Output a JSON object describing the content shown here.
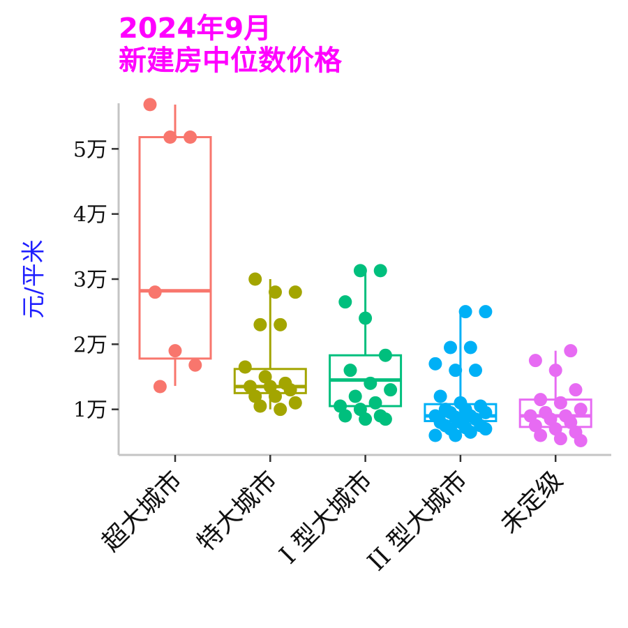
{
  "chart_data": {
    "type": "box",
    "title_lines": [
      "2024年9月",
      "新建房中位数价格"
    ],
    "ylabel": "元/平米",
    "xlabel": "",
    "ylim": [
      3000,
      57000
    ],
    "y_ticks": [
      {
        "value": 10000,
        "label": "1万"
      },
      {
        "value": 20000,
        "label": "2万"
      },
      {
        "value": 30000,
        "label": "3万"
      },
      {
        "value": 40000,
        "label": "4万"
      },
      {
        "value": 50000,
        "label": "5万"
      }
    ],
    "categories": [
      "超大城市",
      "特大城市",
      "I 型大城市",
      "II 型大城市",
      "未定级"
    ],
    "series": [
      {
        "category": "超大城市",
        "color": "#f8766d",
        "box": {
          "q1": 17800,
          "median": 28200,
          "q3": 51800,
          "lower": 13600,
          "upper": 56800
        },
        "points": [
          56800,
          51800,
          51800,
          28000,
          19000,
          16800,
          13500
        ]
      },
      {
        "category": "特大城市",
        "color": "#a3a500",
        "box": {
          "q1": 12500,
          "median": 13500,
          "q3": 16200,
          "lower": 10000,
          "upper": 30000
        },
        "points": [
          30000,
          28000,
          28000,
          23000,
          23000,
          16500,
          15000,
          14000,
          13500,
          13500,
          13000,
          12000,
          12000,
          11000,
          10500,
          10000
        ]
      },
      {
        "category": "I 型大城市",
        "color": "#00bf7d",
        "box": {
          "q1": 10500,
          "median": 14500,
          "q3": 18300,
          "lower": 8500,
          "upper": 31300
        },
        "points": [
          31300,
          31300,
          26500,
          24000,
          18300,
          16000,
          14000,
          13000,
          12000,
          11000,
          10500,
          10000,
          9000,
          9000,
          8500,
          8500
        ]
      },
      {
        "category": "II 型大城市",
        "color": "#00b0f6",
        "box": {
          "q1": 8200,
          "median": 9000,
          "q3": 10800,
          "lower": 6000,
          "upper": 25000
        },
        "points": [
          25000,
          25000,
          19500,
          19500,
          17000,
          16000,
          16000,
          12000,
          11000,
          10500,
          10000,
          10000,
          9500,
          9500,
          9000,
          9000,
          8800,
          8500,
          8000,
          8000,
          7500,
          7500,
          7200,
          7000,
          7000,
          6500,
          6000,
          6000
        ]
      },
      {
        "category": "未定级",
        "color": "#e76bf3",
        "box": {
          "q1": 7300,
          "median": 9000,
          "q3": 11500,
          "lower": 5200,
          "upper": 19000
        },
        "points": [
          19000,
          17500,
          16000,
          13000,
          11500,
          11000,
          10000,
          9500,
          9000,
          9000,
          8500,
          8000,
          7500,
          7000,
          6500,
          6000,
          5500,
          5200
        ]
      }
    ]
  }
}
